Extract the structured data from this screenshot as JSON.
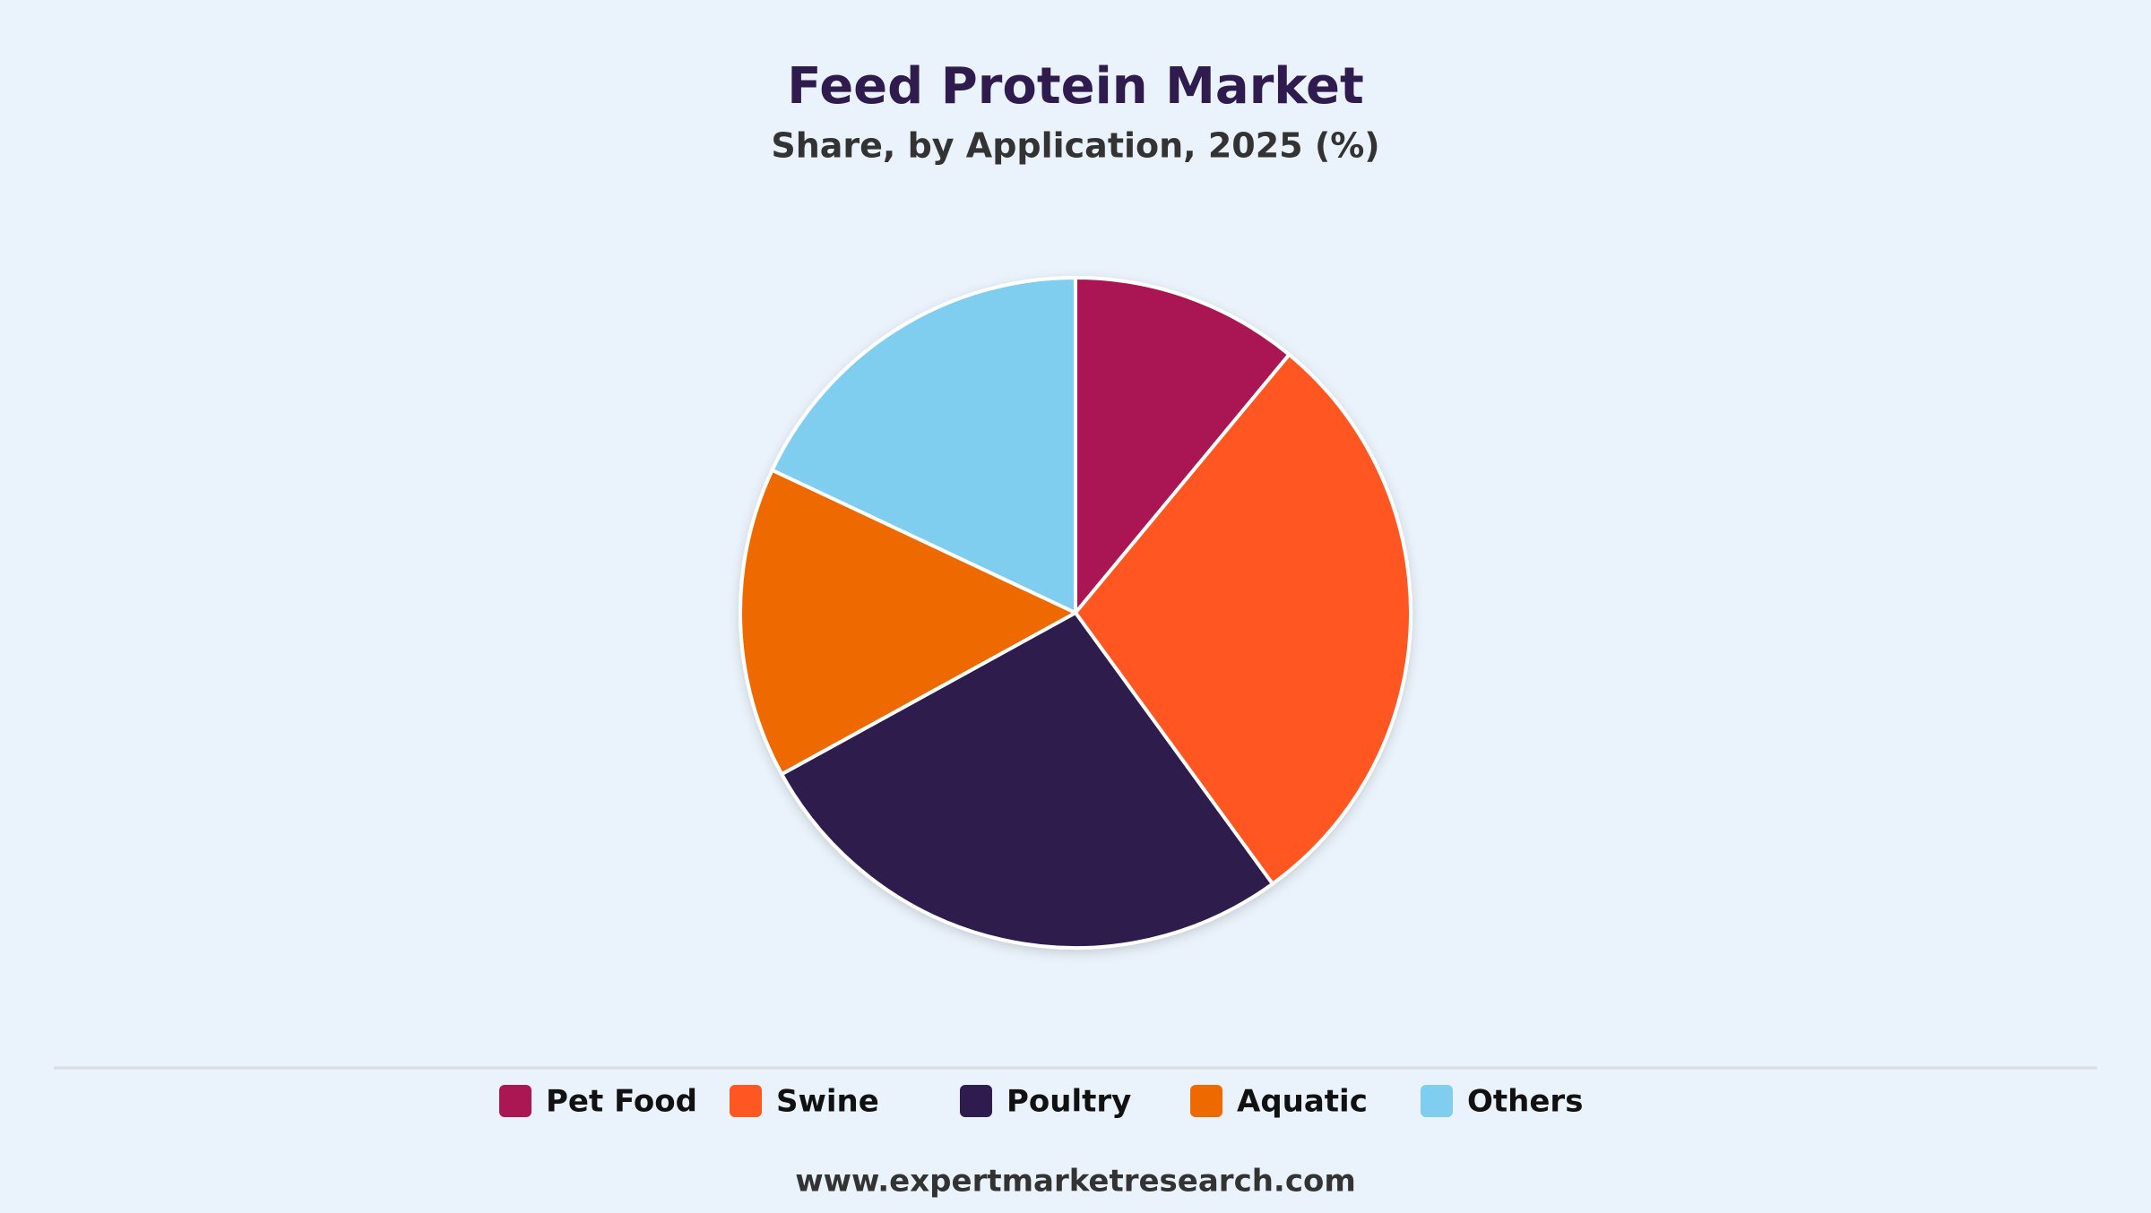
{
  "chart_data": {
    "type": "pie",
    "title": "Feed Protein Market",
    "subtitle": "Share, by Application, 2025 (%)",
    "categories": [
      "Pet Food",
      "Swine",
      "Poultry",
      "Aquatic",
      "Others"
    ],
    "values": [
      11,
      29,
      27,
      15,
      18
    ],
    "colors": [
      "#aa1752",
      "#ff5722",
      "#2f1b4e",
      "#ee6a00",
      "#7fcef0"
    ],
    "legend": "bottom",
    "source": "www.expertmarketresearch.com"
  }
}
